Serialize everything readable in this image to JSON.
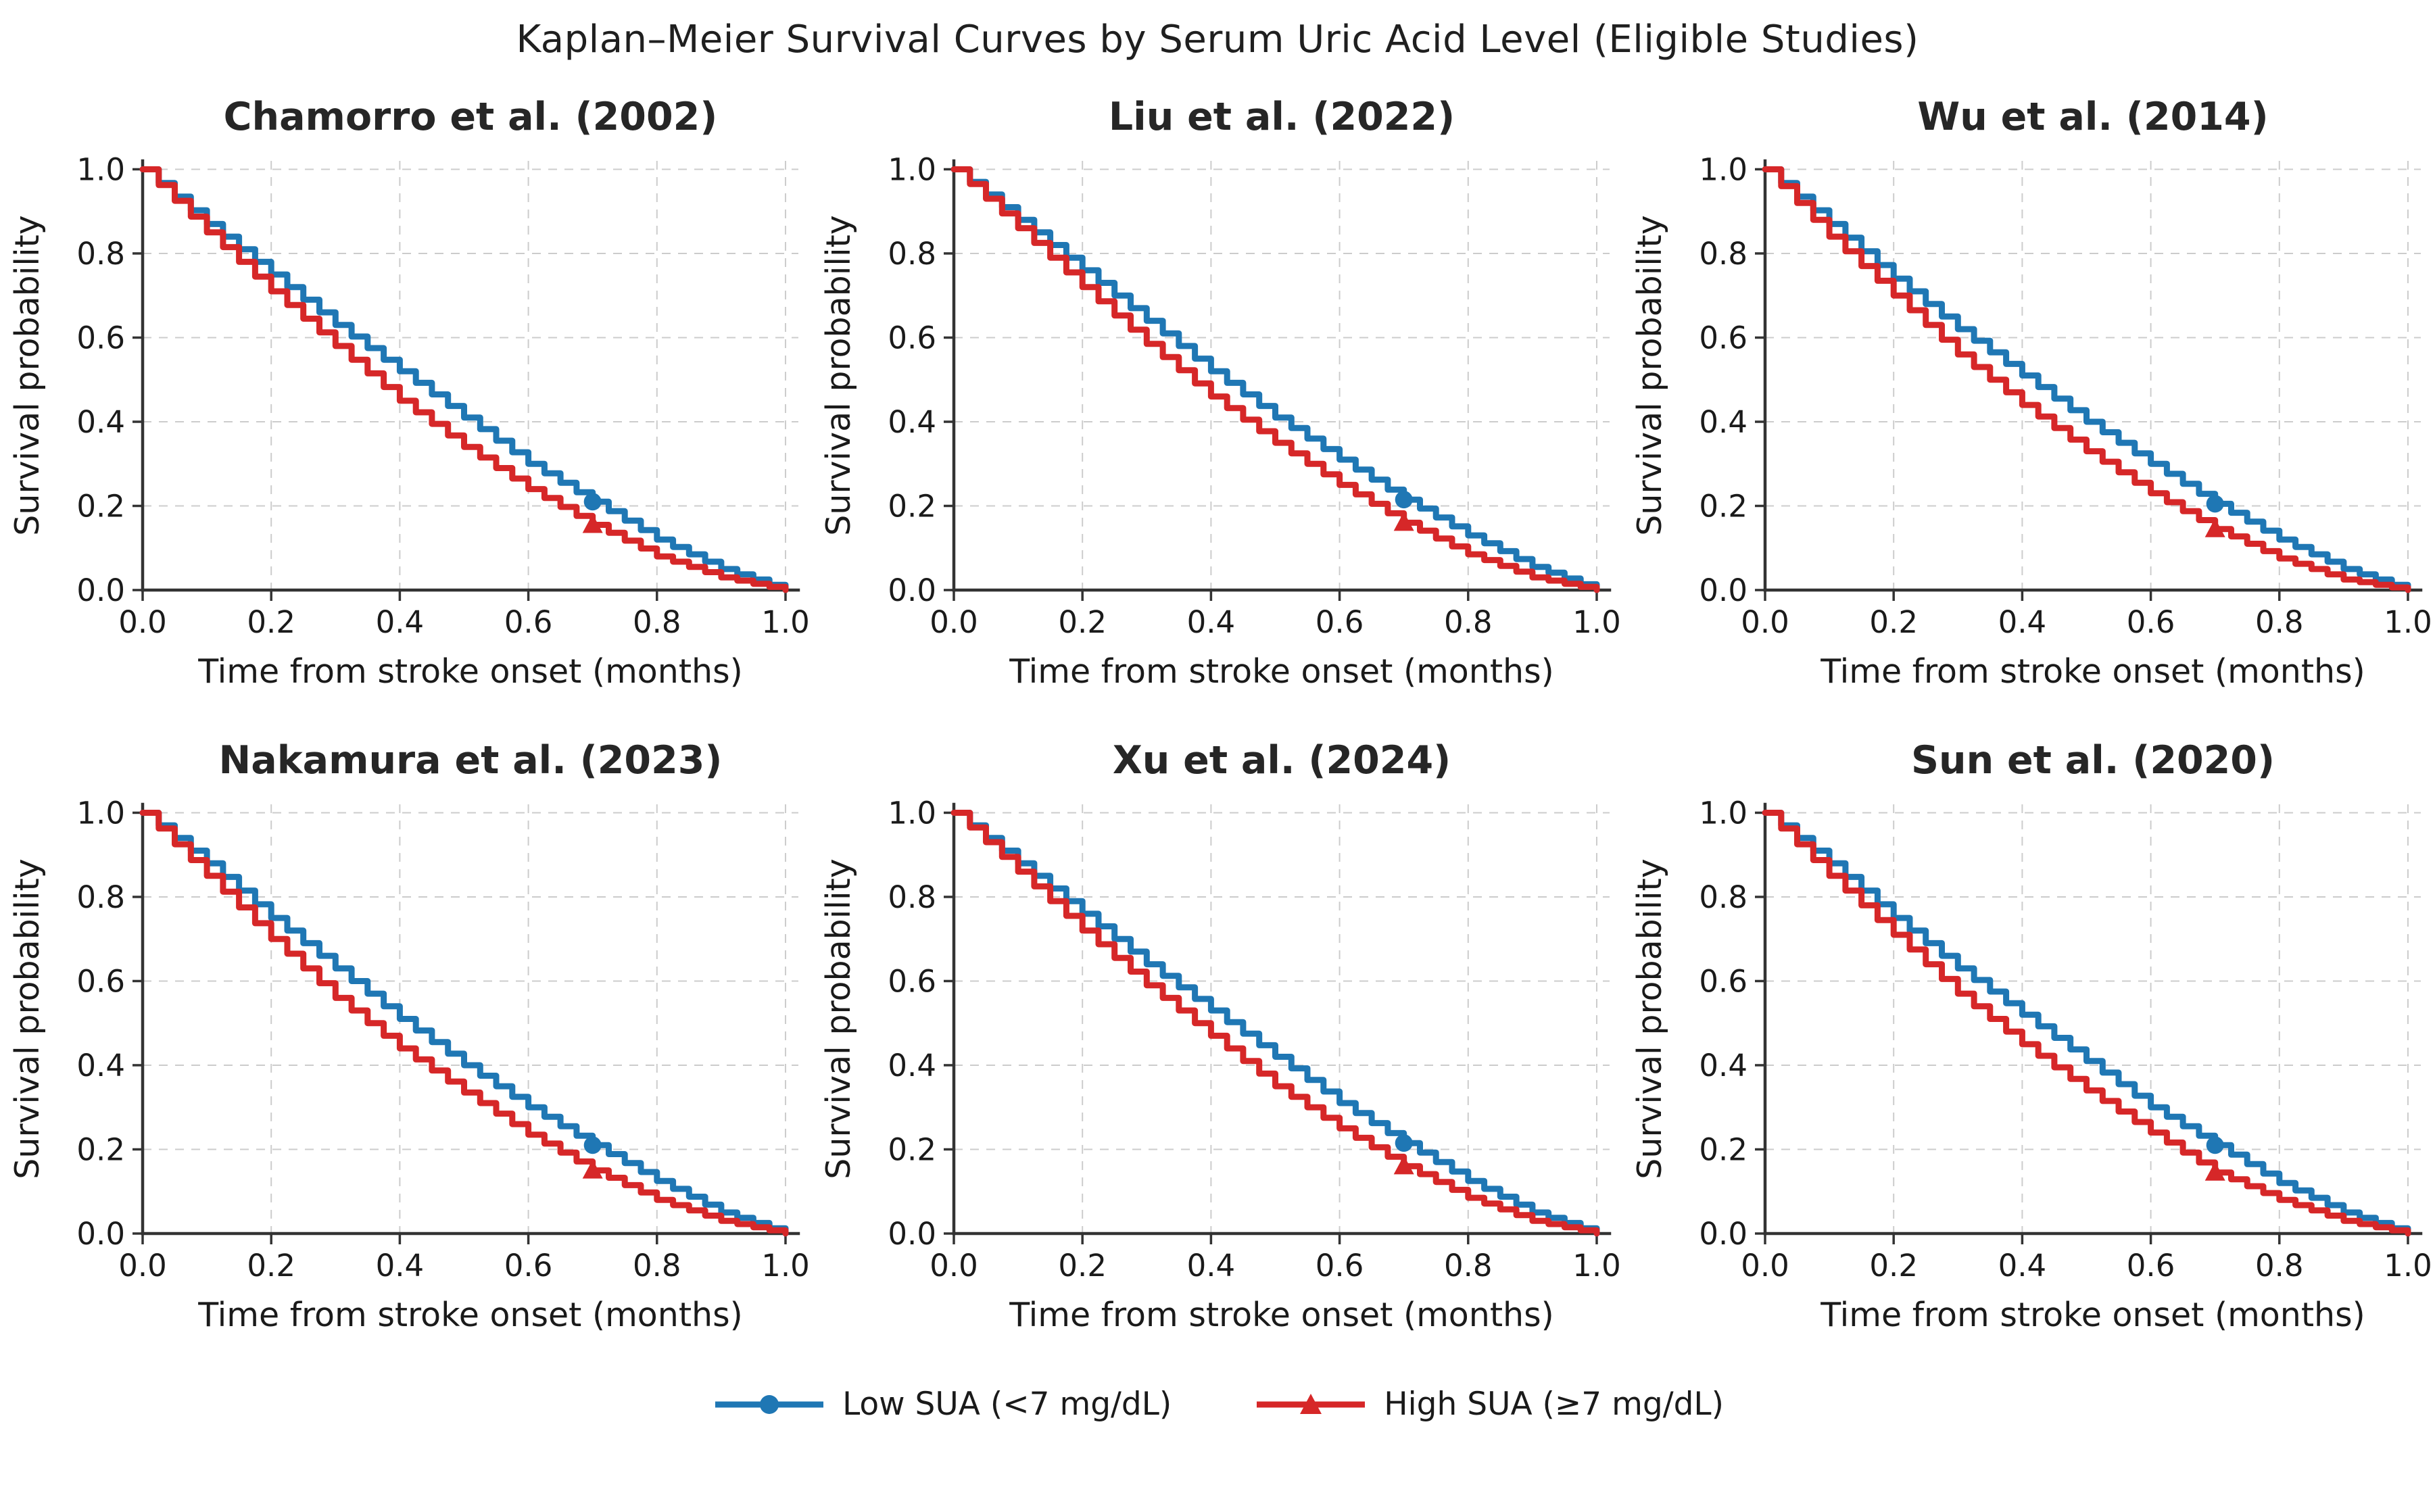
{
  "figure": {
    "title": "Kaplan–Meier Survival Curves by Serum Uric Acid Level (Eligible Studies)"
  },
  "axes": {
    "xlabel": "Time from stroke onset (months)",
    "ylabel": "Survival probability",
    "xtick_values": [
      0,
      0.2,
      0.4,
      0.6,
      0.8,
      1.0
    ],
    "xtick_labels": [
      "0.0",
      "0.2",
      "0.4",
      "0.6",
      "0.8",
      "1.0"
    ],
    "ytick_values": [
      0,
      0.2,
      0.4,
      0.6,
      0.8,
      1.0
    ],
    "ytick_labels": [
      "0.0",
      "0.2",
      "0.4",
      "0.6",
      "0.8",
      "1.0"
    ],
    "grid": "dashed"
  },
  "colors": {
    "low": "#1f77b4",
    "high": "#d62728",
    "grid": "#cccccc",
    "spine": "#333333",
    "text": "#1a1a1a"
  },
  "legend": {
    "position": "bottom-center",
    "items": [
      {
        "label": "Low SUA (<7 mg/dL)",
        "color": "#1f77b4",
        "marker": "circle"
      },
      {
        "label": "High SUA (≥7 mg/dL)",
        "color": "#d62728",
        "marker": "triangle"
      }
    ]
  },
  "chart_data": [
    {
      "type": "line",
      "step": true,
      "title": "Chamorro et al. (2002)",
      "xlabel": "Time from stroke onset (months)",
      "ylabel": "Survival probability",
      "xlim": [
        0,
        1.0
      ],
      "ylim": [
        0,
        1.0
      ],
      "marker_x": 0.7,
      "x": [
        0,
        0.1,
        0.2,
        0.3,
        0.4,
        0.5,
        0.6,
        0.7,
        0.8,
        0.9,
        1.0
      ],
      "series": [
        {
          "name": "Low SUA (<7 mg/dL)",
          "color": "#1f77b4",
          "marker": "circle",
          "values": [
            1.0,
            0.87,
            0.75,
            0.63,
            0.52,
            0.41,
            0.3,
            0.21,
            0.12,
            0.05,
            0.0
          ]
        },
        {
          "name": "High SUA (≥7 mg/dL)",
          "color": "#d62728",
          "marker": "triangle",
          "values": [
            1.0,
            0.85,
            0.71,
            0.58,
            0.45,
            0.34,
            0.24,
            0.155,
            0.08,
            0.03,
            0.0
          ]
        }
      ]
    },
    {
      "type": "line",
      "step": true,
      "title": "Liu et al. (2022)",
      "xlabel": "Time from stroke onset (months)",
      "ylabel": "Survival probability",
      "xlim": [
        0,
        1.0
      ],
      "ylim": [
        0,
        1.0
      ],
      "marker_x": 0.7,
      "x": [
        0,
        0.1,
        0.2,
        0.3,
        0.4,
        0.5,
        0.6,
        0.7,
        0.8,
        0.9,
        1.0
      ],
      "series": [
        {
          "name": "Low SUA (<7 mg/dL)",
          "color": "#1f77b4",
          "marker": "circle",
          "values": [
            1.0,
            0.88,
            0.76,
            0.64,
            0.52,
            0.41,
            0.31,
            0.215,
            0.13,
            0.055,
            0.0
          ]
        },
        {
          "name": "High SUA (≥7 mg/dL)",
          "color": "#d62728",
          "marker": "triangle",
          "values": [
            1.0,
            0.86,
            0.72,
            0.585,
            0.46,
            0.35,
            0.25,
            0.16,
            0.085,
            0.03,
            0.0
          ]
        }
      ]
    },
    {
      "type": "line",
      "step": true,
      "title": "Wu et al. (2014)",
      "xlabel": "Time from stroke onset (months)",
      "ylabel": "Survival probability",
      "xlim": [
        0,
        1.0
      ],
      "ylim": [
        0,
        1.0
      ],
      "marker_x": 0.7,
      "x": [
        0,
        0.1,
        0.2,
        0.3,
        0.4,
        0.5,
        0.6,
        0.7,
        0.8,
        0.9,
        1.0
      ],
      "series": [
        {
          "name": "Low SUA (<7 mg/dL)",
          "color": "#1f77b4",
          "marker": "circle",
          "values": [
            1.0,
            0.87,
            0.74,
            0.62,
            0.51,
            0.4,
            0.3,
            0.205,
            0.12,
            0.05,
            0.0
          ]
        },
        {
          "name": "High SUA (≥7 mg/dL)",
          "color": "#d62728",
          "marker": "triangle",
          "values": [
            1.0,
            0.84,
            0.7,
            0.56,
            0.44,
            0.33,
            0.23,
            0.145,
            0.075,
            0.025,
            0.0
          ]
        }
      ]
    },
    {
      "type": "line",
      "step": true,
      "title": "Nakamura et al. (2023)",
      "xlabel": "Time from stroke onset (months)",
      "ylabel": "Survival probability",
      "xlim": [
        0,
        1.0
      ],
      "ylim": [
        0,
        1.0
      ],
      "marker_x": 0.7,
      "x": [
        0,
        0.1,
        0.2,
        0.3,
        0.4,
        0.5,
        0.6,
        0.7,
        0.8,
        0.9,
        1.0
      ],
      "series": [
        {
          "name": "Low SUA (<7 mg/dL)",
          "color": "#1f77b4",
          "marker": "circle",
          "values": [
            1.0,
            0.88,
            0.75,
            0.63,
            0.51,
            0.4,
            0.3,
            0.21,
            0.125,
            0.05,
            0.0
          ]
        },
        {
          "name": "High SUA (≥7 mg/dL)",
          "color": "#d62728",
          "marker": "triangle",
          "values": [
            1.0,
            0.85,
            0.7,
            0.56,
            0.44,
            0.335,
            0.235,
            0.15,
            0.08,
            0.03,
            0.0
          ]
        }
      ]
    },
    {
      "type": "line",
      "step": true,
      "title": "Xu et al. (2024)",
      "xlabel": "Time from stroke onset (months)",
      "ylabel": "Survival probability",
      "xlim": [
        0,
        1.0
      ],
      "ylim": [
        0,
        1.0
      ],
      "marker_x": 0.7,
      "x": [
        0,
        0.1,
        0.2,
        0.3,
        0.4,
        0.5,
        0.6,
        0.7,
        0.8,
        0.9,
        1.0
      ],
      "series": [
        {
          "name": "Low SUA (<7 mg/dL)",
          "color": "#1f77b4",
          "marker": "circle",
          "values": [
            1.0,
            0.88,
            0.76,
            0.64,
            0.53,
            0.42,
            0.31,
            0.215,
            0.125,
            0.05,
            0.0
          ]
        },
        {
          "name": "High SUA (≥7 mg/dL)",
          "color": "#d62728",
          "marker": "triangle",
          "values": [
            1.0,
            0.86,
            0.72,
            0.59,
            0.47,
            0.35,
            0.25,
            0.16,
            0.085,
            0.03,
            0.0
          ]
        }
      ]
    },
    {
      "type": "line",
      "step": true,
      "title": "Sun et al. (2020)",
      "xlabel": "Time from stroke onset (months)",
      "ylabel": "Survival probability",
      "xlim": [
        0,
        1.0
      ],
      "ylim": [
        0,
        1.0
      ],
      "marker_x": 0.7,
      "x": [
        0,
        0.1,
        0.2,
        0.3,
        0.4,
        0.5,
        0.6,
        0.7,
        0.8,
        0.9,
        1.0
      ],
      "series": [
        {
          "name": "Low SUA (<7 mg/dL)",
          "color": "#1f77b4",
          "marker": "circle",
          "values": [
            1.0,
            0.88,
            0.75,
            0.63,
            0.52,
            0.41,
            0.3,
            0.21,
            0.12,
            0.05,
            0.0
          ]
        },
        {
          "name": "High SUA (≥7 mg/dL)",
          "color": "#d62728",
          "marker": "triangle",
          "values": [
            1.0,
            0.85,
            0.71,
            0.57,
            0.45,
            0.34,
            0.24,
            0.145,
            0.08,
            0.03,
            0.0
          ]
        }
      ]
    }
  ]
}
